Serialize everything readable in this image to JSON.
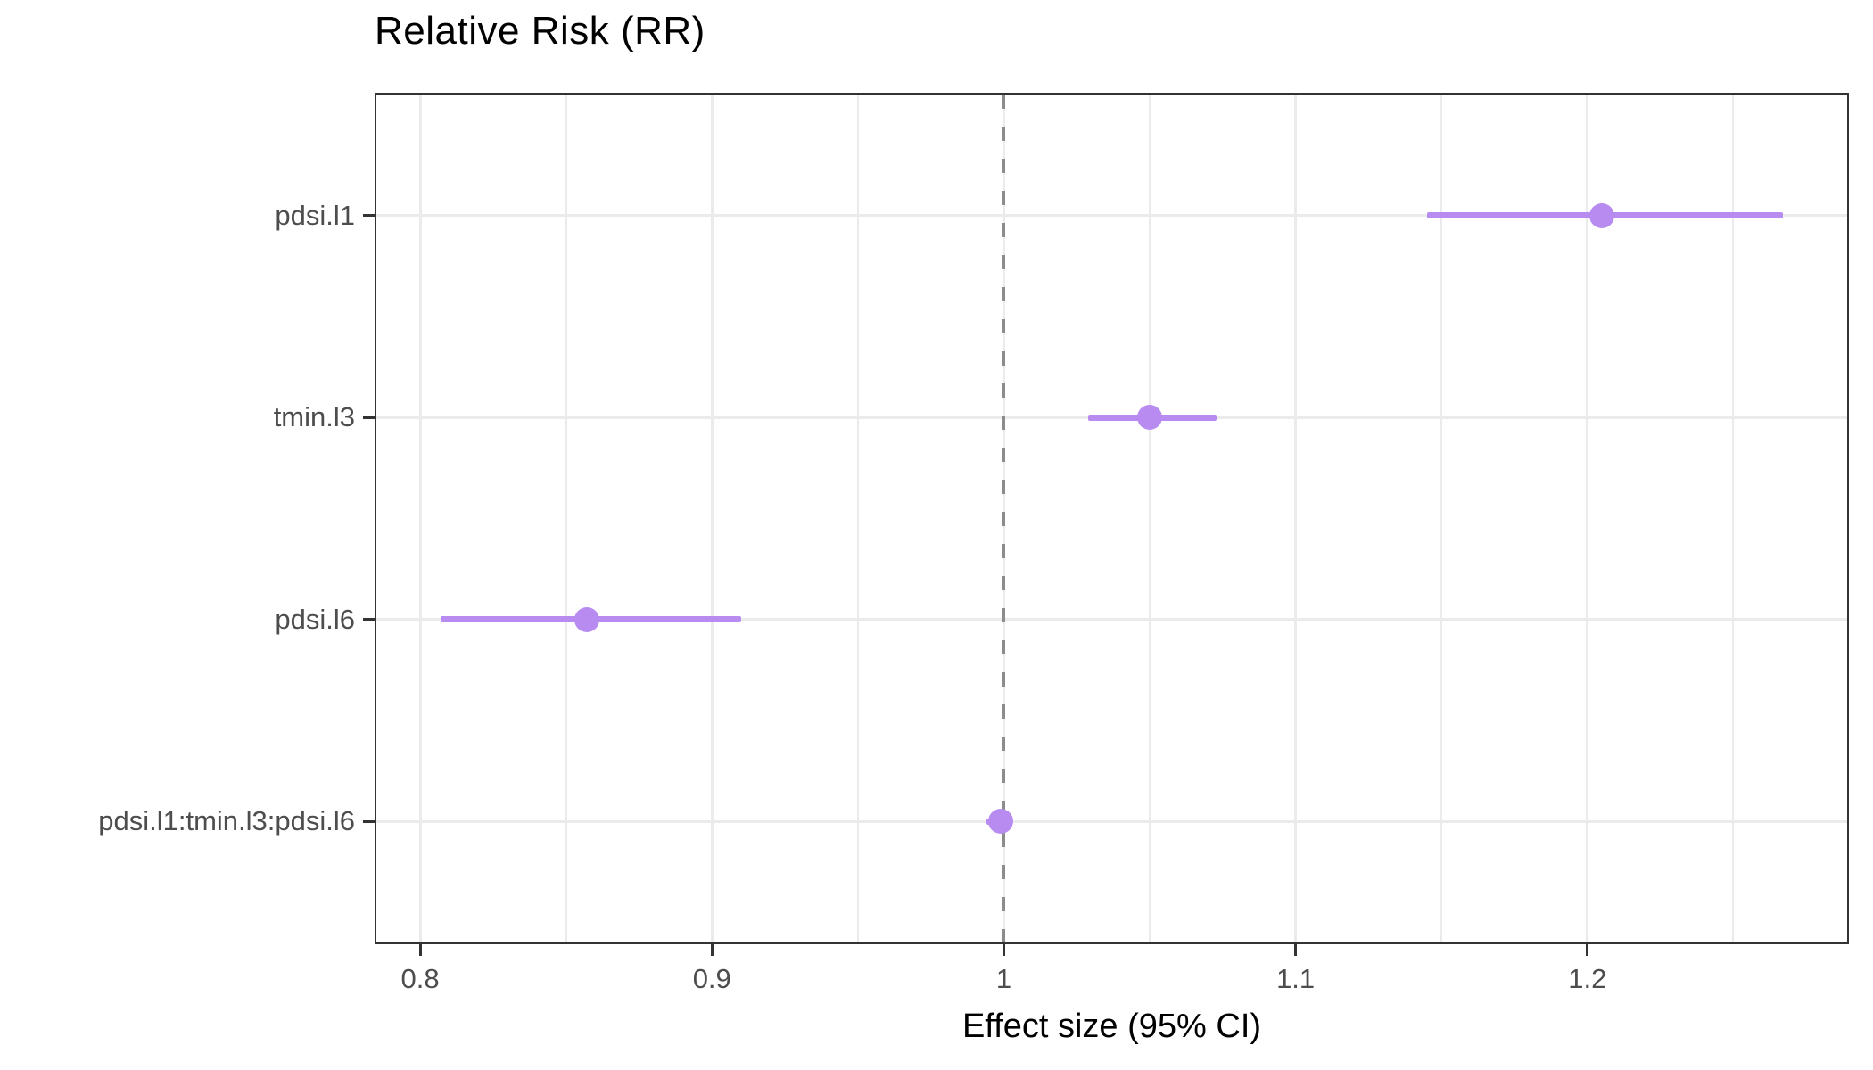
{
  "title": "Relative Risk (RR)",
  "chart_data": {
    "type": "scatter",
    "subtype": "forest-plot",
    "title": "Relative Risk (RR)",
    "xlabel": "Effect size (95% CI)",
    "ylabel": "",
    "xlim": [
      0.785,
      1.289
    ],
    "x_major_ticks": [
      0.8,
      0.9,
      1.0,
      1.1,
      1.2
    ],
    "x_tick_labels": [
      "0.8",
      "0.9",
      "1",
      "1.1",
      "1.2"
    ],
    "x_minor_ticks": [
      0.85,
      0.95,
      1.05,
      1.15,
      1.25
    ],
    "grid": true,
    "legend": false,
    "reference_line": {
      "x": 1.0,
      "style": "dashed",
      "color": "#8C8C8C"
    },
    "series": [
      {
        "label": "pdsi.l1",
        "estimate": 1.205,
        "ci_low": 1.145,
        "ci_high": 1.267
      },
      {
        "label": "tmin.l3",
        "estimate": 1.05,
        "ci_low": 1.029,
        "ci_high": 1.073
      },
      {
        "label": "pdsi.l6",
        "estimate": 0.857,
        "ci_low": 0.807,
        "ci_high": 0.91
      },
      {
        "label": "pdsi.l1:tmin.l3:pdsi.l6",
        "estimate": 0.999,
        "ci_low": 0.994,
        "ci_high": 1.003
      }
    ],
    "colors": {
      "point": "#B78BF0",
      "ci_line": "#B78BF0",
      "gridline": "#EBEBEB",
      "panel_border": "#333333",
      "reference_line": "#8C8C8C",
      "axis_text": "#4D4D4D",
      "title_text": "#000000"
    }
  }
}
